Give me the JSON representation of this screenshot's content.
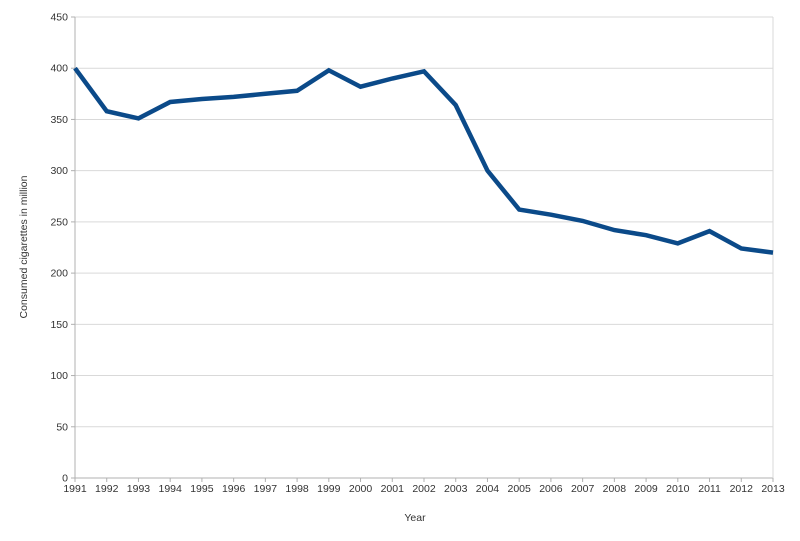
{
  "chart_data": {
    "type": "line",
    "title": "",
    "xlabel": "Year",
    "ylabel": "Consumed cigarettes in million",
    "x": [
      1991,
      1992,
      1993,
      1994,
      1995,
      1996,
      1997,
      1998,
      1999,
      2000,
      2001,
      2002,
      2003,
      2004,
      2005,
      2006,
      2007,
      2008,
      2009,
      2010,
      2011,
      2012,
      2013
    ],
    "series": [
      {
        "name": "Consumed cigarettes in million",
        "color": "#0b4a89",
        "values": [
          400,
          358,
          351,
          367,
          370,
          372,
          375,
          378,
          398,
          382,
          390,
          397,
          364,
          300,
          262,
          257,
          251,
          242,
          237,
          229,
          241,
          224,
          220
        ]
      }
    ],
    "ylim": [
      0,
      450
    ],
    "ytick_step": 50,
    "grid": "horizontal",
    "legend": "none"
  },
  "colors": {
    "background": "#ffffff",
    "gridline": "#d9d9d9",
    "axis": "#b0b0b0",
    "tick_text": "#333333",
    "line": "#0b4a89"
  }
}
